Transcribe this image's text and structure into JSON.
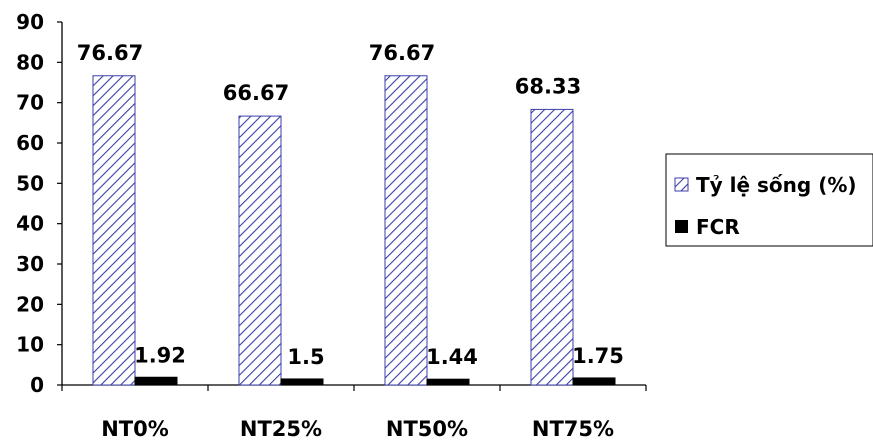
{
  "chart_data": {
    "type": "bar",
    "categories": [
      "NT0%",
      "NT25%",
      "NT50%",
      "NT75%"
    ],
    "series": [
      {
        "name": "Tỷ lệ sống (%)",
        "values": [
          76.67,
          66.67,
          76.67,
          68.33
        ],
        "data_labels": [
          "76.67",
          "66.67",
          "76.67",
          "68.33"
        ],
        "fill": "hatched",
        "color": "#3b3fa8"
      },
      {
        "name": "FCR",
        "values": [
          1.92,
          1.5,
          1.44,
          1.75
        ],
        "data_labels": [
          "1.92",
          "1.5",
          "1.44",
          "1.75"
        ],
        "fill": "solid",
        "color": "#000000"
      }
    ],
    "ylim": [
      0,
      90
    ],
    "yticks": [
      0,
      10,
      20,
      30,
      40,
      50,
      60,
      70,
      80,
      90
    ],
    "ytick_labels": [
      "0",
      "10",
      "20",
      "30",
      "40",
      "50",
      "60",
      "70",
      "80",
      "90"
    ],
    "title": "",
    "xlabel": "",
    "ylabel": "",
    "grid": false,
    "legend_position": "right"
  }
}
